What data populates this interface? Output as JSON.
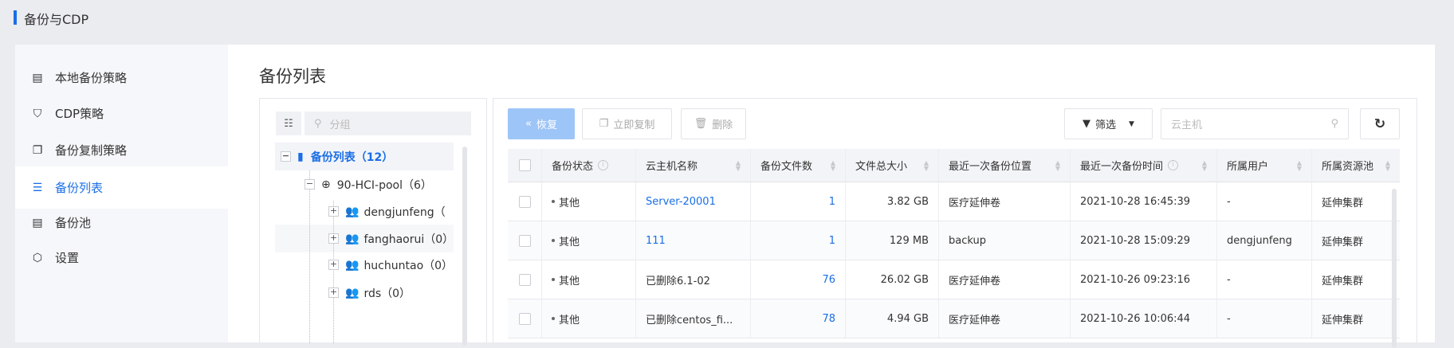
{
  "header": {
    "title": "备份与CDP"
  },
  "sidebar": {
    "items": [
      {
        "label": "本地备份策略",
        "icon": "document-icon",
        "active": false
      },
      {
        "label": "CDP策略",
        "icon": "shield-check-icon",
        "active": false
      },
      {
        "label": "备份复制策略",
        "icon": "copy-icon",
        "active": false
      },
      {
        "label": "备份列表",
        "icon": "list-icon",
        "active": true
      },
      {
        "label": "备份池",
        "icon": "pool-icon",
        "active": false
      },
      {
        "label": "设置",
        "icon": "settings-hex-icon",
        "active": false
      }
    ]
  },
  "page": {
    "title": "备份列表"
  },
  "tree": {
    "search_placeholder": "分组",
    "root": {
      "label": "备份列表（12）"
    },
    "pool": {
      "label": "90-HCI-pool（6）"
    },
    "users": [
      {
        "label": "dengjunfeng（"
      },
      {
        "label": "fanghaorui（0）"
      },
      {
        "label": "huchuntao（0）"
      },
      {
        "label": "rds（0）"
      }
    ]
  },
  "toolbar": {
    "restore": "恢复",
    "copy_now": "立即复制",
    "delete": "删除",
    "filter": "筛选",
    "search_placeholder": "云主机"
  },
  "table": {
    "columns": [
      "备份状态",
      "云主机名称",
      "备份文件数",
      "文件总大小",
      "最近一次备份位置",
      "最近一次备份时间",
      "所属用户",
      "所属资源池"
    ],
    "rows": [
      {
        "status": "其他",
        "name": "Server-20001",
        "name_link": true,
        "files": "1",
        "size": "3.82 GB",
        "location": "医疗延伸卷",
        "time": "2021-10-28 16:45:39",
        "user": "-",
        "pool": "延伸集群"
      },
      {
        "status": "其他",
        "name": "111",
        "name_link": true,
        "files": "1",
        "size": "129 MB",
        "location": "backup",
        "time": "2021-10-28 15:09:29",
        "user": "dengjunfeng",
        "pool": "延伸集群"
      },
      {
        "status": "其他",
        "name": "已删除6.1-02",
        "name_link": false,
        "files": "76",
        "size": "26.02 GB",
        "location": "医疗延伸卷",
        "time": "2021-10-26 09:23:16",
        "user": "-",
        "pool": "延伸集群"
      },
      {
        "status": "其他",
        "name": "已删除centos_fi...",
        "name_link": false,
        "files": "78",
        "size": "4.94 GB",
        "location": "医疗延伸卷",
        "time": "2021-10-26 10:06:44",
        "user": "-",
        "pool": "延伸集群"
      }
    ]
  },
  "colors": {
    "accent": "#1a6ee6",
    "primary_disabled": "#9ec5f7"
  }
}
